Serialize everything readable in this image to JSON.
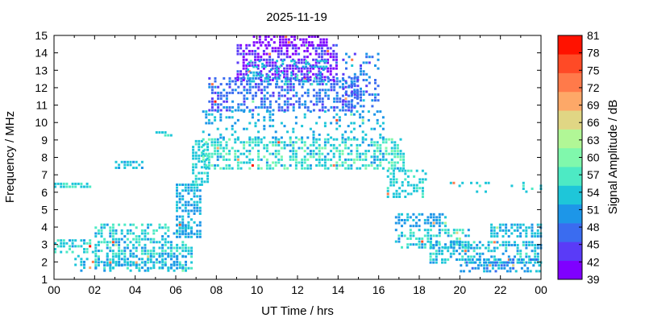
{
  "chart_data": {
    "type": "heatmap",
    "title": "2025-11-19",
    "xlabel": "UT Time / hrs",
    "ylabel": "Frequency / MHz",
    "colorbar_label": "Signal Amplitude / dB",
    "xlim": [
      0,
      24
    ],
    "ylim": [
      1,
      15
    ],
    "x_ticks": [
      "00",
      "02",
      "04",
      "06",
      "08",
      "10",
      "12",
      "14",
      "16",
      "18",
      "20",
      "22",
      "00"
    ],
    "y_ticks": [
      "1",
      "2",
      "3",
      "4",
      "5",
      "6",
      "7",
      "8",
      "9",
      "10",
      "11",
      "12",
      "13",
      "14",
      "15"
    ],
    "colorbar_ticks": [
      "39",
      "42",
      "45",
      "48",
      "51",
      "54",
      "57",
      "60",
      "63",
      "66",
      "69",
      "72",
      "75",
      "78",
      "81"
    ],
    "colorbar_colors": [
      "#7f00ff",
      "#5a3bf7",
      "#3a6cf0",
      "#1d96e8",
      "#1ec6d9",
      "#4deac4",
      "#80f8ac",
      "#b1f796",
      "#e0d684",
      "#fda868",
      "#ff7a4a",
      "#ff4a26",
      "#ff1200"
    ],
    "grid": false,
    "bands": [
      {
        "x": [
          0.0,
          2.0
        ],
        "y": [
          2.5,
          3.3
        ],
        "amp": [
          51,
          57
        ],
        "density": 0.55
      },
      {
        "x": [
          0.0,
          1.8
        ],
        "y": [
          6.25,
          6.55
        ],
        "amp": [
          52,
          56
        ],
        "density": 0.8
      },
      {
        "x": [
          2.0,
          6.8
        ],
        "y": [
          1.7,
          4.2
        ],
        "amp": [
          50,
          58
        ],
        "density": 0.55
      },
      {
        "x": [
          1.0,
          6.5
        ],
        "y": [
          1.5,
          2.4
        ],
        "amp": [
          50,
          54
        ],
        "density": 0.35
      },
      {
        "x": [
          3.0,
          4.3
        ],
        "y": [
          7.4,
          7.8
        ],
        "amp": [
          51,
          55
        ],
        "density": 0.6
      },
      {
        "x": [
          5.0,
          5.8
        ],
        "y": [
          9.3,
          9.5
        ],
        "amp": [
          52,
          56
        ],
        "density": 0.6
      },
      {
        "x": [
          6.0,
          7.2
        ],
        "y": [
          3.5,
          6.5
        ],
        "amp": [
          50,
          54
        ],
        "density": 0.7
      },
      {
        "x": [
          6.8,
          7.6
        ],
        "y": [
          6.5,
          9.0
        ],
        "amp": [
          52,
          56
        ],
        "density": 0.6
      },
      {
        "x": [
          7.3,
          17.2
        ],
        "y": [
          7.3,
          9.1
        ],
        "amp": [
          51,
          60
        ],
        "density": 0.55
      },
      {
        "x": [
          7.3,
          16.2
        ],
        "y": [
          9.1,
          10.7
        ],
        "amp": [
          50,
          54
        ],
        "density": 0.25
      },
      {
        "x": [
          7.6,
          15.0
        ],
        "y": [
          10.7,
          12.6
        ],
        "amp": [
          44,
          51
        ],
        "density": 0.5
      },
      {
        "x": [
          9.0,
          13.9
        ],
        "y": [
          12.4,
          14.5
        ],
        "amp": [
          39,
          46
        ],
        "density": 0.6
      },
      {
        "x": [
          9.5,
          13.5
        ],
        "y": [
          12.2,
          13.6
        ],
        "amp": [
          50,
          56
        ],
        "density": 0.35
      },
      {
        "x": [
          14.2,
          16.0
        ],
        "y": [
          11.0,
          14.0
        ],
        "amp": [
          44,
          52
        ],
        "density": 0.35
      },
      {
        "x": [
          9.8,
          13.5
        ],
        "y": [
          14.5,
          15.0
        ],
        "amp": [
          39,
          42
        ],
        "density": 0.5
      },
      {
        "x": [
          16.4,
          18.3
        ],
        "y": [
          5.8,
          7.3
        ],
        "amp": [
          52,
          56
        ],
        "density": 0.5
      },
      {
        "x": [
          16.8,
          19.3
        ],
        "y": [
          4.0,
          4.8
        ],
        "amp": [
          49,
          53
        ],
        "density": 0.6
      },
      {
        "x": [
          16.8,
          20.5
        ],
        "y": [
          2.9,
          3.9
        ],
        "amp": [
          50,
          58
        ],
        "density": 0.5
      },
      {
        "x": [
          18.5,
          24.0
        ],
        "y": [
          2.0,
          3.2
        ],
        "amp": [
          49,
          56
        ],
        "density": 0.55
      },
      {
        "x": [
          20.0,
          24.0
        ],
        "y": [
          1.5,
          2.2
        ],
        "amp": [
          48,
          53
        ],
        "density": 0.45
      },
      {
        "x": [
          21.5,
          24.0
        ],
        "y": [
          3.4,
          4.2
        ],
        "amp": [
          50,
          54
        ],
        "density": 0.5
      },
      {
        "x": [
          19.5,
          24.0
        ],
        "y": [
          6.0,
          6.6
        ],
        "amp": [
          52,
          56
        ],
        "density": 0.15
      }
    ]
  }
}
